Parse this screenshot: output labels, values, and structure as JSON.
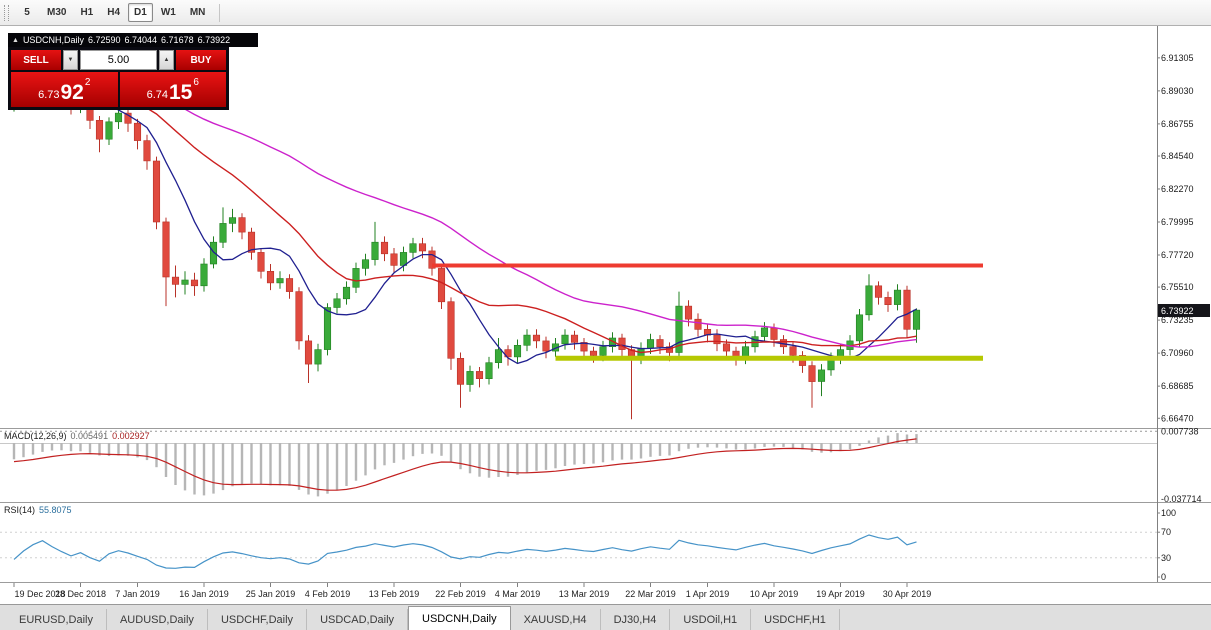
{
  "toolbar": {
    "periods": [
      "5",
      "M30",
      "H1",
      "H4",
      "D1",
      "W1",
      "MN"
    ],
    "active": "D1"
  },
  "trade_panel": {
    "header": {
      "symbol": "USDCNH,Daily",
      "open": "6.72590",
      "high": "6.74044",
      "low": "6.71678",
      "close": "6.73922"
    },
    "sell_label": "SELL",
    "buy_label": "BUY",
    "volume": "5.00",
    "sell_price": {
      "prefix": "6.73",
      "big": "92",
      "sup": "2"
    },
    "buy_price": {
      "prefix": "6.74",
      "big": "15",
      "sup": "6"
    }
  },
  "tabs": {
    "items": [
      "EURUSD,Daily",
      "AUDUSD,Daily",
      "USDCHF,Daily",
      "USDCAD,Daily",
      "USDCNH,Daily",
      "XAUUSD,H4",
      "DJ30,H4",
      "USDOil,H1",
      "USDCHF,H1"
    ],
    "active_index": 4
  },
  "chart_data": {
    "type": "candlestick",
    "symbol": "USDCNH",
    "timeframe": "Daily",
    "last_price": "6.73922",
    "price_axis_labels": [
      "6.91305",
      "6.89030",
      "6.86755",
      "6.84540",
      "6.82270",
      "6.79995",
      "6.77720",
      "6.75510",
      "6.73235",
      "6.70960",
      "6.68685",
      "6.66470"
    ],
    "x_axis": {
      "labels": [
        "19 Dec 2018",
        "28 Dec 2018",
        "7 Jan 2019",
        "16 Jan 2019",
        "25 Jan 2019",
        "4 Feb 2019",
        "13 Feb 2019",
        "22 Feb 2019",
        "4 Mar 2019",
        "13 Mar 2019",
        "22 Mar 2019",
        "1 Apr 2019",
        "10 Apr 2019",
        "19 Apr 2019",
        "30 Apr 2019"
      ],
      "indices": [
        0,
        7,
        13,
        20,
        27,
        33,
        40,
        47,
        53,
        60,
        67,
        73,
        80,
        87,
        94
      ]
    },
    "colors": {
      "up": "#3aaa3a",
      "up_border": "#228022",
      "down": "#e04a3f",
      "down_border": "#b83228",
      "background": "#ffffff"
    },
    "candles": [
      [
        6.88,
        6.893,
        6.876,
        6.886
      ],
      [
        6.886,
        6.897,
        6.882,
        6.892
      ],
      [
        6.892,
        6.903,
        6.888,
        6.898
      ],
      [
        6.898,
        6.91,
        6.894,
        6.903
      ],
      [
        6.903,
        6.907,
        6.891,
        6.896
      ],
      [
        6.896,
        6.9,
        6.883,
        6.888
      ],
      [
        6.888,
        6.892,
        6.874,
        6.879
      ],
      [
        6.879,
        6.888,
        6.875,
        6.883
      ],
      [
        6.883,
        6.886,
        6.864,
        6.87
      ],
      [
        6.87,
        6.873,
        6.848,
        6.857
      ],
      [
        6.857,
        6.872,
        6.853,
        6.869
      ],
      [
        6.869,
        6.879,
        6.864,
        6.875
      ],
      [
        6.875,
        6.878,
        6.862,
        6.868
      ],
      [
        6.868,
        6.871,
        6.85,
        6.856
      ],
      [
        6.856,
        6.86,
        6.836,
        6.842
      ],
      [
        6.842,
        6.845,
        6.795,
        6.8
      ],
      [
        6.8,
        6.803,
        6.742,
        6.762
      ],
      [
        6.762,
        6.77,
        6.748,
        6.757
      ],
      [
        6.757,
        6.766,
        6.75,
        6.76
      ],
      [
        6.76,
        6.765,
        6.749,
        6.756
      ],
      [
        6.756,
        6.775,
        6.752,
        6.771
      ],
      [
        6.771,
        6.79,
        6.768,
        6.786
      ],
      [
        6.786,
        6.81,
        6.782,
        6.799
      ],
      [
        6.799,
        6.809,
        6.793,
        6.803
      ],
      [
        6.803,
        6.806,
        6.788,
        6.793
      ],
      [
        6.793,
        6.796,
        6.774,
        6.779
      ],
      [
        6.779,
        6.782,
        6.761,
        6.766
      ],
      [
        6.766,
        6.771,
        6.753,
        6.758
      ],
      [
        6.758,
        6.766,
        6.754,
        6.761
      ],
      [
        6.761,
        6.764,
        6.747,
        6.752
      ],
      [
        6.752,
        6.755,
        6.712,
        6.718
      ],
      [
        6.718,
        6.722,
        6.689,
        6.702
      ],
      [
        6.702,
        6.716,
        6.697,
        6.712
      ],
      [
        6.712,
        6.744,
        6.708,
        6.741
      ],
      [
        6.741,
        6.751,
        6.737,
        6.747
      ],
      [
        6.747,
        6.759,
        6.743,
        6.755
      ],
      [
        6.755,
        6.772,
        6.751,
        6.768
      ],
      [
        6.768,
        6.778,
        6.763,
        6.774
      ],
      [
        6.774,
        6.8,
        6.77,
        6.786
      ],
      [
        6.786,
        6.79,
        6.773,
        6.778
      ],
      [
        6.778,
        6.782,
        6.765,
        6.77
      ],
      [
        6.77,
        6.783,
        6.766,
        6.779
      ],
      [
        6.779,
        6.789,
        6.775,
        6.785
      ],
      [
        6.785,
        6.789,
        6.775,
        6.78
      ],
      [
        6.78,
        6.783,
        6.763,
        6.768
      ],
      [
        6.768,
        6.771,
        6.74,
        6.745
      ],
      [
        6.745,
        6.748,
        6.698,
        6.706
      ],
      [
        6.706,
        6.71,
        6.672,
        6.688
      ],
      [
        6.688,
        6.701,
        6.683,
        6.697
      ],
      [
        6.697,
        6.7,
        6.686,
        6.692
      ],
      [
        6.692,
        6.707,
        6.688,
        6.703
      ],
      [
        6.703,
        6.72,
        6.699,
        6.712
      ],
      [
        6.712,
        6.715,
        6.701,
        6.707
      ],
      [
        6.707,
        6.719,
        6.703,
        6.715
      ],
      [
        6.715,
        6.726,
        6.711,
        6.722
      ],
      [
        6.722,
        6.726,
        6.713,
        6.718
      ],
      [
        6.718,
        6.721,
        6.706,
        6.711
      ],
      [
        6.711,
        6.72,
        6.707,
        6.716
      ],
      [
        6.716,
        6.726,
        6.712,
        6.722
      ],
      [
        6.722,
        6.725,
        6.712,
        6.717
      ],
      [
        6.717,
        6.72,
        6.706,
        6.711
      ],
      [
        6.711,
        6.714,
        6.703,
        6.708
      ],
      [
        6.708,
        6.718,
        6.704,
        6.714
      ],
      [
        6.714,
        6.724,
        6.71,
        6.72
      ],
      [
        6.72,
        6.723,
        6.707,
        6.712
      ],
      [
        6.712,
        6.715,
        6.664,
        6.706
      ],
      [
        6.706,
        6.717,
        6.702,
        6.713
      ],
      [
        6.713,
        6.723,
        6.709,
        6.719
      ],
      [
        6.719,
        6.722,
        6.709,
        6.714
      ],
      [
        6.714,
        6.717,
        6.704,
        6.71
      ],
      [
        6.71,
        6.752,
        6.706,
        6.742
      ],
      [
        6.742,
        6.746,
        6.728,
        6.733
      ],
      [
        6.733,
        6.737,
        6.721,
        6.726
      ],
      [
        6.726,
        6.73,
        6.717,
        6.722
      ],
      [
        6.722,
        6.726,
        6.711,
        6.716
      ],
      [
        6.716,
        6.719,
        6.706,
        6.711
      ],
      [
        6.711,
        6.714,
        6.701,
        6.706
      ],
      [
        6.706,
        6.718,
        6.702,
        6.714
      ],
      [
        6.714,
        6.725,
        6.71,
        6.721
      ],
      [
        6.721,
        6.731,
        6.717,
        6.727
      ],
      [
        6.727,
        6.73,
        6.714,
        6.719
      ],
      [
        6.719,
        6.722,
        6.709,
        6.714
      ],
      [
        6.714,
        6.717,
        6.703,
        6.708
      ],
      [
        6.708,
        6.711,
        6.696,
        6.701
      ],
      [
        6.701,
        6.704,
        6.672,
        6.69
      ],
      [
        6.69,
        6.702,
        6.68,
        6.698
      ],
      [
        6.698,
        6.71,
        6.694,
        6.706
      ],
      [
        6.706,
        6.716,
        6.702,
        6.712
      ],
      [
        6.712,
        6.722,
        6.708,
        6.718
      ],
      [
        6.718,
        6.74,
        6.714,
        6.736
      ],
      [
        6.736,
        6.764,
        6.732,
        6.756
      ],
      [
        6.756,
        6.759,
        6.743,
        6.748
      ],
      [
        6.748,
        6.752,
        6.738,
        6.743
      ],
      [
        6.743,
        6.757,
        6.739,
        6.753
      ],
      [
        6.753,
        6.756,
        6.72,
        6.726
      ],
      [
        6.7259,
        6.74044,
        6.71678,
        6.73922
      ]
    ],
    "ma_seed_closes": [
      6.962,
      6.959,
      6.956,
      6.953,
      6.95,
      6.947,
      6.944,
      6.941,
      6.938,
      6.935,
      6.932,
      6.929,
      6.926,
      6.923,
      6.92,
      6.917,
      6.914,
      6.911,
      6.908,
      6.906,
      6.904,
      6.902,
      6.9,
      6.898,
      6.896,
      6.894,
      6.892,
      6.89,
      6.889,
      6.888,
      6.887,
      6.886,
      6.885,
      6.884,
      6.883,
      6.882,
      6.881,
      6.88,
      6.879,
      6.878
    ],
    "moving_averages": [
      {
        "name": "ma-fast",
        "period": 8,
        "color": "#202090",
        "width": 1.3
      },
      {
        "name": "ma-medium",
        "period": 21,
        "color": "#cc2020",
        "width": 1.4
      },
      {
        "name": "ma-slow",
        "period": 45,
        "color": "#cc22cc",
        "width": 1.4
      }
    ],
    "levels": [
      {
        "name": "resistance-line",
        "price": 6.77,
        "from_index": 44,
        "to_index": 102,
        "color": "#ee3b30",
        "width": 4
      },
      {
        "name": "support-line",
        "price": 6.706,
        "from_index": 57,
        "to_index": 102,
        "color": "#b5c802",
        "width": 5
      }
    ],
    "indicators": {
      "macd": {
        "label": "MACD(12,26,9)",
        "value": "0.005491",
        "signal_value": "0.002927",
        "params": [
          12,
          26,
          9
        ],
        "axis_top_label": "0.007738",
        "axis_bottom_label": "-0.037714",
        "histogram_color": "#b6b6b6",
        "signal_color": "#c22121"
      },
      "rsi": {
        "label": "RSI(14)",
        "value": "55.8075",
        "period": 14,
        "axis_labels": [
          "100",
          "70",
          "30",
          "0"
        ],
        "color": "#4693c8"
      }
    }
  }
}
